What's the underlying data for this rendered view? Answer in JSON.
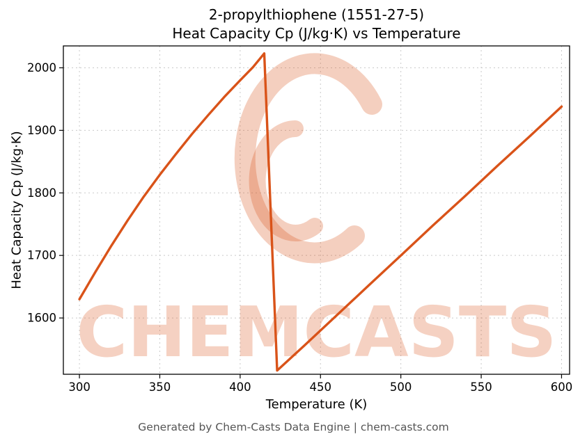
{
  "header": {
    "title_line1": "2-propylthiophene (1551-27-5)",
    "title_line2": "Heat Capacity Cp (J/kg·K) vs Temperature"
  },
  "footer": {
    "text": "Generated by Chem-Casts Data Engine | chem-casts.com"
  },
  "watermark": {
    "text": "CHEMCASTS",
    "color": "#d95319",
    "text_opacity": 0.26,
    "logo_opacity": 0.28
  },
  "chart_data": {
    "type": "line",
    "title": "2-propylthiophene (1551-27-5) Heat Capacity Cp (J/kg·K) vs Temperature",
    "xlabel": "Temperature (K)",
    "ylabel": "Heat Capacity Cp (J/kg·K)",
    "xlim": [
      290,
      605
    ],
    "ylim": [
      1510,
      2035
    ],
    "x_ticks": [
      300,
      350,
      400,
      450,
      500,
      550,
      600
    ],
    "y_ticks": [
      1600,
      1700,
      1800,
      1900,
      2000
    ],
    "grid": true,
    "grid_color": "#c9c9c9",
    "axis_color": "#000000",
    "line_color": "#d95319",
    "line_width": 3.4,
    "series": [
      {
        "name": "Heat Capacity Cp",
        "points": [
          [
            300,
            1630
          ],
          [
            310,
            1674
          ],
          [
            320,
            1716
          ],
          [
            330,
            1756
          ],
          [
            340,
            1794
          ],
          [
            350,
            1829
          ],
          [
            360,
            1862
          ],
          [
            370,
            1894
          ],
          [
            380,
            1924
          ],
          [
            390,
            1953
          ],
          [
            400,
            1980
          ],
          [
            408,
            2001
          ],
          [
            415,
            2023
          ],
          [
            423,
            1516
          ],
          [
            440,
            1556
          ],
          [
            460,
            1604
          ],
          [
            480,
            1652
          ],
          [
            500,
            1700
          ],
          [
            520,
            1748
          ],
          [
            540,
            1795
          ],
          [
            560,
            1843
          ],
          [
            580,
            1890
          ],
          [
            600,
            1938
          ]
        ]
      }
    ]
  }
}
